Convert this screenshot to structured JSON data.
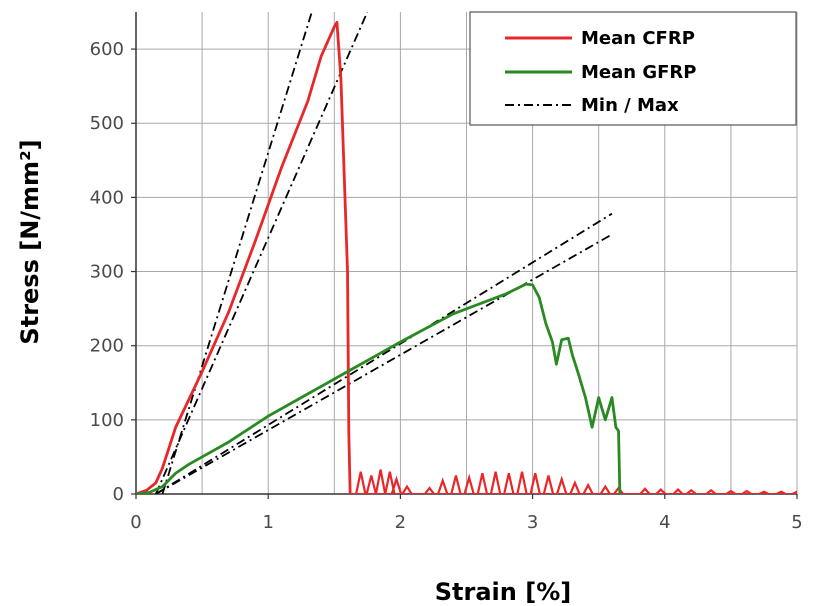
{
  "chart_data": {
    "type": "line",
    "title": "",
    "xlabel": "Strain [%]",
    "ylabel": "Stress [N/mm²]",
    "xlim": [
      0,
      5
    ],
    "ylim": [
      0,
      650
    ],
    "x_ticks": [
      "0",
      "1",
      "2",
      "3",
      "4",
      "5"
    ],
    "y_ticks": [
      "0",
      "100",
      "200",
      "300",
      "400",
      "500",
      "600"
    ],
    "x_tick_values": [
      0,
      1,
      2,
      3,
      4,
      5
    ],
    "y_tick_values": [
      0,
      100,
      200,
      300,
      400,
      500,
      600
    ],
    "grid": true,
    "legend_position": "top-right",
    "series": [
      {
        "name": "Mean CFRP",
        "color": "#e8272a",
        "style": "solid",
        "x": [
          0,
          0.08,
          0.15,
          0.2,
          0.3,
          0.5,
          0.7,
          0.9,
          1.1,
          1.3,
          1.4,
          1.5,
          1.52,
          1.55,
          1.6,
          1.61,
          1.62
        ],
        "y": [
          0,
          5,
          15,
          35,
          90,
          165,
          245,
          340,
          440,
          530,
          590,
          630,
          636,
          560,
          300,
          80,
          0
        ]
      },
      {
        "name": "Mean GFRP",
        "color": "#2a8a22",
        "style": "solid",
        "x": [
          0,
          0.1,
          0.2,
          0.3,
          0.4,
          0.5,
          0.7,
          1.0,
          1.3,
          1.6,
          2.0,
          2.4,
          2.8,
          2.95,
          3.0,
          3.05,
          3.1,
          3.15,
          3.18,
          3.22,
          3.27,
          3.3,
          3.35,
          3.4,
          3.45,
          3.5,
          3.55,
          3.6,
          3.63,
          3.65,
          3.66
        ],
        "y": [
          0,
          2,
          10,
          28,
          40,
          50,
          70,
          105,
          135,
          165,
          205,
          243,
          270,
          283,
          282,
          265,
          230,
          205,
          175,
          208,
          210,
          188,
          160,
          130,
          90,
          130,
          100,
          130,
          90,
          85,
          0
        ]
      },
      {
        "name": "Min / Max",
        "color": "#000000",
        "style": "dashdot",
        "x": [],
        "y": []
      }
    ],
    "minmax_lines": [
      {
        "x": [
          0.2,
          1.33
        ],
        "y": [
          0,
          650
        ]
      },
      {
        "x": [
          0.15,
          1.75
        ],
        "y": [
          0,
          650
        ]
      },
      {
        "x": [
          0.15,
          3.6
        ],
        "y": [
          0,
          378
        ]
      },
      {
        "x": [
          0.15,
          3.6
        ],
        "y": [
          0,
          350
        ]
      }
    ],
    "cfrp_fragments": [
      [
        1.7,
        30
      ],
      [
        1.78,
        25
      ],
      [
        1.85,
        33
      ],
      [
        1.92,
        30
      ],
      [
        1.97,
        20
      ],
      [
        2.05,
        10
      ],
      [
        2.22,
        8
      ],
      [
        2.32,
        18
      ],
      [
        2.42,
        25
      ],
      [
        2.52,
        22
      ],
      [
        2.62,
        28
      ],
      [
        2.72,
        30
      ],
      [
        2.82,
        28
      ],
      [
        2.92,
        30
      ],
      [
        3.02,
        28
      ],
      [
        3.12,
        25
      ],
      [
        3.22,
        20
      ],
      [
        3.32,
        15
      ],
      [
        3.42,
        12
      ],
      [
        3.55,
        10
      ],
      [
        3.65,
        8
      ],
      [
        3.85,
        7
      ],
      [
        3.97,
        6
      ],
      [
        4.1,
        6
      ],
      [
        4.2,
        5
      ],
      [
        4.35,
        5
      ],
      [
        4.5,
        4
      ],
      [
        4.62,
        4
      ],
      [
        4.75,
        3
      ],
      [
        4.88,
        3
      ],
      [
        5.0,
        3
      ]
    ]
  }
}
